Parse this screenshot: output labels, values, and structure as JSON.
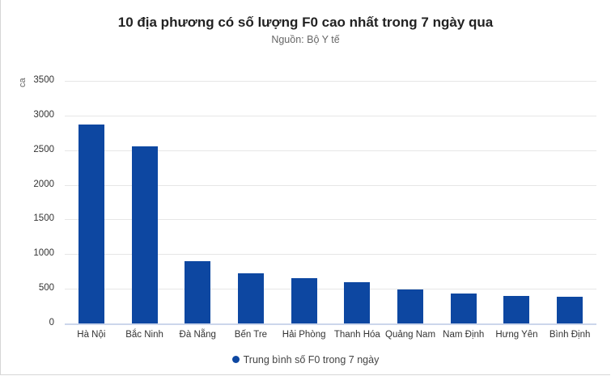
{
  "chart_data": {
    "type": "bar",
    "title": "10 địa phương có số lượng F0 cao nhất trong 7 ngày qua",
    "subtitle": "Nguồn: Bộ Y tế",
    "xlabel": "",
    "ylabel": "ca",
    "ylim": [
      0,
      3500
    ],
    "yticks": [
      0,
      500,
      1000,
      1500,
      2000,
      2500,
      3000,
      3500
    ],
    "grid": true,
    "legend_position": "bottom",
    "categories": [
      "Hà Nội",
      "Bắc Ninh",
      "Đà Nẵng",
      "Bến Tre",
      "Hải Phòng",
      "Thanh Hóa",
      "Quảng Nam",
      "Nam Định",
      "Hưng Yên",
      "Bình Định"
    ],
    "series": [
      {
        "name": "Trung bình số F0 trong 7 ngày",
        "color": "#0d47a1",
        "values": [
          2870,
          2555,
          900,
          725,
          655,
          600,
          490,
          430,
          400,
          390
        ]
      }
    ]
  },
  "labels": {
    "yticks": [
      "3500",
      "3000",
      "2500",
      "2000",
      "1500",
      "1000",
      "500",
      "0"
    ]
  }
}
